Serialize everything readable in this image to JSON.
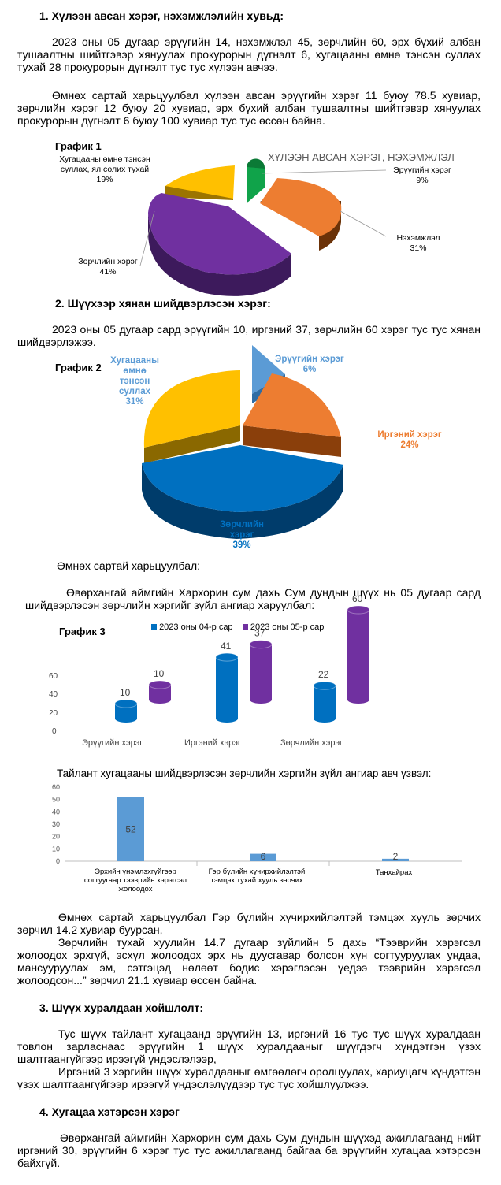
{
  "section1": {
    "heading": "1.  Хүлээн авсан хэрэг, нэхэмжлэлийн хувьд:",
    "p1": "2023 оны 05 дугаар эрүүгийн 14, нэхэмжлэл 45, зөрчлийн 60, эрх бүхий албан тушаалтны шийтгэвэр хянуулах прокурорын дүгнэлт 6, хугацааны өмнө тэнсэн суллах тухай 28 прокурорын дүгнэлт тус тус хүлээн авчээ.",
    "p2": "Өмнөх сартай харьцуулбал хүлээн авсан эрүүгийн хэрэг 11 буюу 78.5 хувиар, зөрчлийн хэрэг 12 буюу 20 хувиар, эрх бүхий албан тушаалтны шийтгэвэр хянуулах прокурорын дүгнэлт 6 буюу 100 хувиар тус тус өссөн байна."
  },
  "chart1": {
    "label": "График 1",
    "title": "ХҮЛЭЭН АВСАН ХЭРЭГ, НЭХЭМЖЛЭЛ",
    "slices": [
      {
        "name": "Эрүүгийн хэрэг",
        "pct": "9%",
        "value": 9,
        "color": "#10a34a"
      },
      {
        "name": "Нэхэмжлэл",
        "pct": "31%",
        "value": 31,
        "color": "#ed7d31"
      },
      {
        "name": "Зөрчлийн хэрэг",
        "pct": "41%",
        "value": 41,
        "color": "#7030a0"
      },
      {
        "name": "Хугацааны өмнө тэнсэн суллах, ял солих тухай",
        "pct": "19%",
        "value": 19,
        "color": "#ffc000"
      }
    ]
  },
  "section2": {
    "heading": "2.  Шүүхээр хянан шийдвэрлэсэн хэрэг:",
    "p1": "2023 оны 05 дугаар сард эрүүгийн 10, иргэний 37, зөрчлийн 60 хэрэг тус тус хянан шийдвэрлэжээ."
  },
  "chart2": {
    "label": "График 2",
    "slices": [
      {
        "name": "Эрүүгийн хэрэг",
        "pct": "6%",
        "value": 6,
        "color": "#5b9bd5"
      },
      {
        "name": "Иргэний хэрэг",
        "pct": "24%",
        "value": 24,
        "color": "#ed7d31"
      },
      {
        "name": "Зөрчлийн хэрэг",
        "pct": "39%",
        "value": 39,
        "color": "#0070c0"
      },
      {
        "name": "Хугацааны өмнө тэнсэн суллах",
        "pct": "31%",
        "value": 31,
        "color": "#ffc000"
      }
    ]
  },
  "compare_label": "Өмнөх сартай харьцуулбал:",
  "p_court": "Өвөрхангай аймгийн Хархорин сум дахь Сум дундын шүүх нь 05 дугаар сард шийдвэрлэсэн зөрчлийн хэргийг зүйл ангиар харуулбал:",
  "chart3": {
    "label": "График 3",
    "chart_data": {
      "type": "bar",
      "categories": [
        "Эрүүгийн хэрэг",
        "Иргэний хэрэг",
        "Зөрчлийн хэрэг"
      ],
      "series": [
        {
          "name": "2023 оны 04-р сар",
          "values": [
            10,
            41,
            22
          ],
          "color": "#0070c0"
        },
        {
          "name": "2023 оны 05-р сар",
          "values": [
            10,
            37,
            60
          ],
          "color": "#7030a0"
        }
      ],
      "yticks": [
        "0",
        "20",
        "40",
        "60"
      ],
      "ylim": [
        0,
        60
      ],
      "legend": "top"
    }
  },
  "chart4": {
    "title": "Тайлант хугацааны шийдвэрлэсэн зөрчлийн хэргийн зүйл ангиар авч үзвэл:",
    "chart_data": {
      "type": "bar",
      "categories": [
        "Эрхийн үнэмлэхгүйгээр согтуугаар тээврийн хэрэгсэл жолоодох",
        "Гэр бүлийн хүчирхийлэлтэй тэмцэх тухай хууль зөрчих",
        "Танхайрах"
      ],
      "values": [
        52,
        6,
        2
      ],
      "yticks": [
        "0",
        "10",
        "20",
        "30",
        "40",
        "50",
        "60"
      ],
      "ylim": [
        0,
        60
      ],
      "color": "#5b9bd5"
    }
  },
  "after_chart": {
    "p1": "Өмнөх сартай харьцуулбал Гэр бүлийн хүчирхийлэлтэй тэмцэх хууль зөрчих зөрчил 14.2 хувиар буурсан,",
    "p2": "Зөрчлийн тухай хуулийн 14.7 дугаар зүйлийн 5 дахь “Тээврийн хэрэгсэл жолоодох эрхгүй, эсхүл жолоодох эрх нь дуусгавар болсон хүн согтууруулах ундаа, мансууруулах эм, сэтгэцэд нөлөөт бодис хэрэглэсэн үедээ тээврийн хэрэгсэл жолоодсон...” зөрчил 21.1 хувиар өссөн байна."
  },
  "section3": {
    "heading": "3.  Шүүх хуралдаан хойшлолт:",
    "p1": "Тус шүүх тайлант хугацаанд эрүүгийн 13, иргэний 16 тус тус шүүх хуралдаан товлон зарласнаас эрүүгийн 1 шүүх хуралдааныг шүүгдэгч хүндэтгэн үзэх шалтгаангүйгээр ирээгүй үндэслэлээр,",
    "p2": "Иргэний 3 хэргийн шүүх хуралдааныг өмгөөлөгч оролцуулах, хариуцагч хүндэтгэн үзэх шалтгаангүйгээр ирээгүй үндэслэлүүдээр тус тус хойшлуулжээ."
  },
  "section4": {
    "heading": "4.  Хугацаа хэтэрсэн хэрэг",
    "p1": "Өвөрхангай аймгийн Хархорин сум дахь Сум дундын шүүхэд ажиллагаанд нийт иргэний 30, эрүүгийн 6 хэрэг тус тус ажиллагаанд байгаа ба эрүүгийн хугацаа хэтэрсэн байхгүй."
  }
}
